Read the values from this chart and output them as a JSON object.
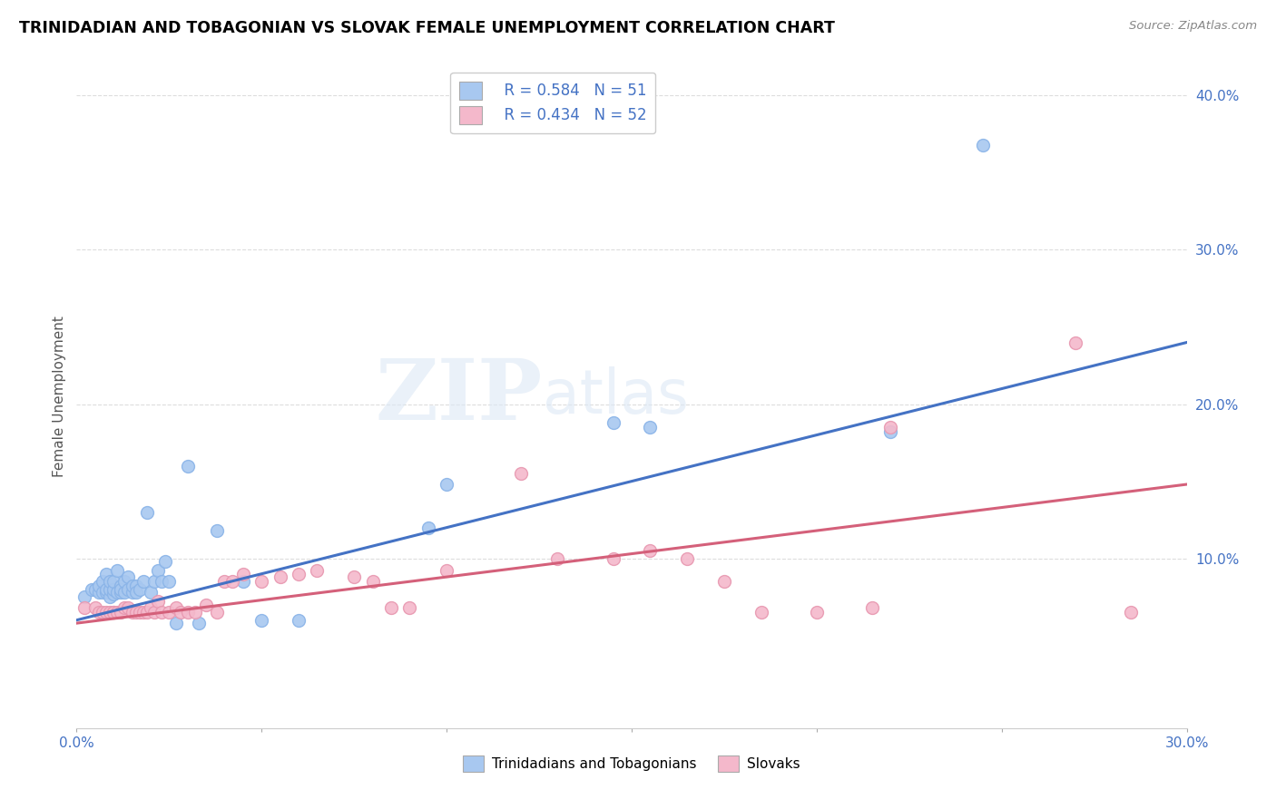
{
  "title": "TRINIDADIAN AND TOBAGONIAN VS SLOVAK FEMALE UNEMPLOYMENT CORRELATION CHART",
  "source": "Source: ZipAtlas.com",
  "ylabel": "Female Unemployment",
  "xlim": [
    0.0,
    0.3
  ],
  "ylim": [
    -0.01,
    0.42
  ],
  "x_ticks": [
    0.0,
    0.05,
    0.1,
    0.15,
    0.2,
    0.25,
    0.3
  ],
  "y_ticks_right": [
    0.0,
    0.1,
    0.2,
    0.3,
    0.4
  ],
  "blue_color": "#A8C8F0",
  "pink_color": "#F4B8CB",
  "blue_line_color": "#4472C4",
  "pink_line_color": "#D4607A",
  "legend_r1": "R = 0.584",
  "legend_n1": "N = 51",
  "legend_r2": "R = 0.434",
  "legend_n2": "N = 52",
  "legend_label1": "Trinidadians and Tobagonians",
  "legend_label2": "Slovaks",
  "watermark_zip": "ZIP",
  "watermark_atlas": "atlas",
  "blue_scatter_x": [
    0.002,
    0.004,
    0.005,
    0.006,
    0.006,
    0.007,
    0.007,
    0.008,
    0.008,
    0.008,
    0.009,
    0.009,
    0.009,
    0.01,
    0.01,
    0.01,
    0.011,
    0.011,
    0.012,
    0.012,
    0.012,
    0.013,
    0.013,
    0.014,
    0.014,
    0.015,
    0.015,
    0.016,
    0.016,
    0.017,
    0.018,
    0.019,
    0.02,
    0.021,
    0.022,
    0.023,
    0.024,
    0.025,
    0.027,
    0.03,
    0.033,
    0.038,
    0.045,
    0.05,
    0.06,
    0.095,
    0.1,
    0.145,
    0.155,
    0.22,
    0.245
  ],
  "blue_scatter_y": [
    0.075,
    0.08,
    0.08,
    0.078,
    0.082,
    0.078,
    0.085,
    0.078,
    0.08,
    0.09,
    0.075,
    0.08,
    0.085,
    0.077,
    0.08,
    0.085,
    0.078,
    0.092,
    0.078,
    0.082,
    0.08,
    0.078,
    0.085,
    0.08,
    0.088,
    0.078,
    0.082,
    0.082,
    0.078,
    0.08,
    0.085,
    0.13,
    0.078,
    0.085,
    0.092,
    0.085,
    0.098,
    0.085,
    0.058,
    0.16,
    0.058,
    0.118,
    0.085,
    0.06,
    0.06,
    0.12,
    0.148,
    0.188,
    0.185,
    0.182,
    0.368
  ],
  "pink_scatter_x": [
    0.002,
    0.005,
    0.006,
    0.007,
    0.008,
    0.009,
    0.01,
    0.01,
    0.011,
    0.012,
    0.013,
    0.014,
    0.015,
    0.016,
    0.017,
    0.018,
    0.019,
    0.02,
    0.021,
    0.022,
    0.023,
    0.025,
    0.027,
    0.028,
    0.03,
    0.032,
    0.035,
    0.038,
    0.04,
    0.042,
    0.045,
    0.05,
    0.055,
    0.06,
    0.065,
    0.075,
    0.08,
    0.085,
    0.09,
    0.1,
    0.12,
    0.13,
    0.145,
    0.155,
    0.165,
    0.175,
    0.185,
    0.2,
    0.215,
    0.22,
    0.27,
    0.285
  ],
  "pink_scatter_y": [
    0.068,
    0.068,
    0.065,
    0.065,
    0.065,
    0.065,
    0.065,
    0.065,
    0.065,
    0.065,
    0.068,
    0.068,
    0.065,
    0.065,
    0.065,
    0.065,
    0.065,
    0.068,
    0.065,
    0.072,
    0.065,
    0.065,
    0.068,
    0.065,
    0.065,
    0.065,
    0.07,
    0.065,
    0.085,
    0.085,
    0.09,
    0.085,
    0.088,
    0.09,
    0.092,
    0.088,
    0.085,
    0.068,
    0.068,
    0.092,
    0.155,
    0.1,
    0.1,
    0.105,
    0.1,
    0.085,
    0.065,
    0.065,
    0.068,
    0.185,
    0.24,
    0.065
  ],
  "blue_line_x": [
    0.0,
    0.3
  ],
  "blue_line_y": [
    0.06,
    0.24
  ],
  "pink_line_x": [
    0.0,
    0.3
  ],
  "pink_line_y": [
    0.058,
    0.148
  ]
}
